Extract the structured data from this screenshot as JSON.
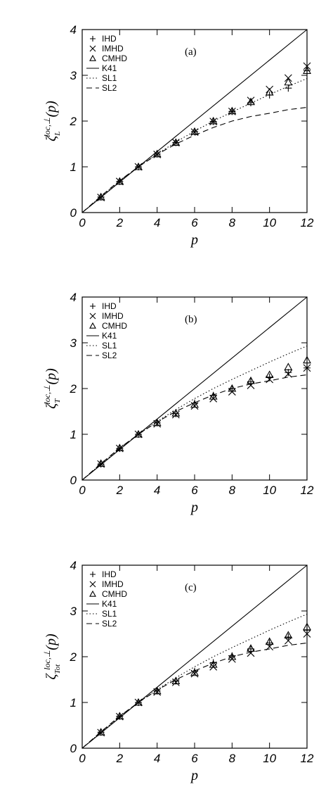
{
  "chart_data": [
    {
      "type": "line",
      "annotation": "(a)",
      "xlabel": "p",
      "ylabel": {
        "symbol": "ζ",
        "sup": "loc,⊥",
        "sub": "L",
        "arg": "(p)"
      },
      "xlim": [
        0,
        12
      ],
      "ylim": [
        0,
        4
      ],
      "xticks": [
        0,
        2,
        4,
        6,
        8,
        10,
        12
      ],
      "yticks": [
        0,
        1,
        2,
        3,
        4
      ],
      "legend": "upper left",
      "series": [
        {
          "name": "IHD",
          "marker": "plus",
          "color": "#000000",
          "x": [
            1,
            2,
            3,
            4,
            5,
            6,
            7,
            8,
            9,
            10,
            11,
            12
          ],
          "values": [
            0.34,
            0.68,
            1.0,
            1.28,
            1.53,
            1.77,
            1.99,
            2.21,
            2.4,
            2.57,
            2.72,
            3.1
          ]
        },
        {
          "name": "IMHD",
          "marker": "cross",
          "color": "#000000",
          "x": [
            1,
            2,
            3,
            4,
            5,
            6,
            7,
            8,
            9,
            10,
            11,
            12
          ],
          "values": [
            0.33,
            0.68,
            1.0,
            1.27,
            1.53,
            1.76,
            1.99,
            2.21,
            2.45,
            2.69,
            2.94,
            3.2
          ]
        },
        {
          "name": "CMHD",
          "marker": "triangle",
          "color": "#000000",
          "x": [
            1,
            2,
            3,
            4,
            5,
            6,
            7,
            8,
            9,
            10,
            11,
            12
          ],
          "values": [
            0.34,
            0.68,
            1.0,
            1.28,
            1.53,
            1.77,
            2.0,
            2.22,
            2.42,
            2.63,
            2.85,
            3.1
          ]
        },
        {
          "name": "K41",
          "dash": "solid",
          "color": "#000000",
          "x": [
            0,
            12
          ],
          "values": [
            0,
            4
          ]
        },
        {
          "name": "SL1",
          "dash": "dotted",
          "color": "#000000",
          "x": [
            0,
            1,
            2,
            3,
            4,
            5,
            6,
            7,
            8,
            9,
            10,
            11,
            12
          ],
          "values": [
            0,
            0.35,
            0.69,
            1.0,
            1.28,
            1.54,
            1.78,
            2.0,
            2.2,
            2.39,
            2.58,
            2.76,
            2.93
          ]
        },
        {
          "name": "SL2",
          "dash": "dashed",
          "color": "#000000",
          "x": [
            0,
            1,
            2,
            3,
            4,
            5,
            6,
            7,
            8,
            9,
            10,
            11,
            12
          ],
          "values": [
            0,
            0.36,
            0.7,
            1.0,
            1.27,
            1.5,
            1.69,
            1.86,
            2.0,
            2.1,
            2.17,
            2.25,
            2.3
          ]
        }
      ]
    },
    {
      "type": "line",
      "annotation": "(b)",
      "xlabel": "p",
      "ylabel": {
        "symbol": "ζ",
        "sup": "loc,⊥",
        "sub": "T",
        "arg": "(p)"
      },
      "xlim": [
        0,
        12
      ],
      "ylim": [
        0,
        4
      ],
      "xticks": [
        0,
        2,
        4,
        6,
        8,
        10,
        12
      ],
      "yticks": [
        0,
        1,
        2,
        3,
        4
      ],
      "legend": "upper left",
      "series": [
        {
          "name": "IHD",
          "marker": "plus",
          "color": "#000000",
          "x": [
            1,
            2,
            3,
            4,
            5,
            6,
            7,
            8,
            9,
            10,
            11,
            12
          ],
          "values": [
            0.35,
            0.69,
            1.0,
            1.25,
            1.45,
            1.68,
            1.85,
            2.0,
            2.15,
            2.25,
            2.35,
            2.45
          ]
        },
        {
          "name": "IMHD",
          "marker": "cross",
          "color": "#000000",
          "x": [
            1,
            2,
            3,
            4,
            5,
            6,
            7,
            8,
            9,
            10,
            11,
            12
          ],
          "values": [
            0.35,
            0.69,
            1.0,
            1.23,
            1.43,
            1.62,
            1.78,
            1.93,
            2.07,
            2.2,
            2.32,
            2.45
          ]
        },
        {
          "name": "CMHD",
          "marker": "triangle",
          "color": "#000000",
          "x": [
            1,
            2,
            3,
            4,
            5,
            6,
            7,
            8,
            9,
            10,
            11,
            12
          ],
          "values": [
            0.36,
            0.7,
            1.0,
            1.25,
            1.46,
            1.65,
            1.83,
            2.0,
            2.17,
            2.3,
            2.47,
            2.62
          ]
        },
        {
          "name": "K41",
          "dash": "solid",
          "color": "#000000",
          "x": [
            0,
            12
          ],
          "values": [
            0,
            4
          ]
        },
        {
          "name": "SL1",
          "dash": "dotted",
          "color": "#000000",
          "x": [
            0,
            1,
            2,
            3,
            4,
            5,
            6,
            7,
            8,
            9,
            10,
            11,
            12
          ],
          "values": [
            0,
            0.35,
            0.69,
            1.0,
            1.28,
            1.54,
            1.78,
            2.0,
            2.2,
            2.39,
            2.58,
            2.76,
            2.93
          ]
        },
        {
          "name": "SL2",
          "dash": "dashed",
          "color": "#000000",
          "x": [
            0,
            1,
            2,
            3,
            4,
            5,
            6,
            7,
            8,
            9,
            10,
            11,
            12
          ],
          "values": [
            0,
            0.36,
            0.7,
            1.0,
            1.27,
            1.5,
            1.69,
            1.86,
            2.0,
            2.1,
            2.17,
            2.25,
            2.3
          ]
        }
      ]
    },
    {
      "type": "line",
      "annotation": "(c)",
      "xlabel": "p",
      "ylabel": {
        "symbol": "ζ",
        "sup": "loc,⊥",
        "sub": "Tot",
        "arg": "(p)"
      },
      "xlim": [
        0,
        12
      ],
      "ylim": [
        0,
        4
      ],
      "xticks": [
        0,
        2,
        4,
        6,
        8,
        10,
        12
      ],
      "yticks": [
        0,
        1,
        2,
        3,
        4
      ],
      "legend": "upper left",
      "series": [
        {
          "name": "IHD",
          "marker": "plus",
          "color": "#000000",
          "x": [
            1,
            2,
            3,
            4,
            5,
            6,
            7,
            8,
            9,
            10,
            11,
            12
          ],
          "values": [
            0.35,
            0.7,
            1.0,
            1.25,
            1.47,
            1.68,
            1.87,
            2.02,
            2.17,
            2.3,
            2.43,
            2.58
          ]
        },
        {
          "name": "IMHD",
          "marker": "cross",
          "color": "#000000",
          "x": [
            1,
            2,
            3,
            4,
            5,
            6,
            7,
            8,
            9,
            10,
            11,
            12
          ],
          "values": [
            0.34,
            0.69,
            1.0,
            1.23,
            1.44,
            1.63,
            1.78,
            1.95,
            2.08,
            2.22,
            2.35,
            2.5
          ]
        },
        {
          "name": "CMHD",
          "marker": "triangle",
          "color": "#000000",
          "x": [
            1,
            2,
            3,
            4,
            5,
            6,
            7,
            8,
            9,
            10,
            11,
            12
          ],
          "values": [
            0.35,
            0.7,
            1.0,
            1.25,
            1.47,
            1.65,
            1.83,
            2.0,
            2.18,
            2.33,
            2.47,
            2.65
          ]
        },
        {
          "name": "K41",
          "dash": "solid",
          "color": "#000000",
          "x": [
            0,
            12
          ],
          "values": [
            0,
            4
          ]
        },
        {
          "name": "SL1",
          "dash": "dotted",
          "color": "#000000",
          "x": [
            0,
            1,
            2,
            3,
            4,
            5,
            6,
            7,
            8,
            9,
            10,
            11,
            12
          ],
          "values": [
            0,
            0.35,
            0.69,
            1.0,
            1.28,
            1.54,
            1.78,
            2.0,
            2.2,
            2.39,
            2.58,
            2.76,
            2.93
          ]
        },
        {
          "name": "SL2",
          "dash": "dashed",
          "color": "#000000",
          "x": [
            0,
            1,
            2,
            3,
            4,
            5,
            6,
            7,
            8,
            9,
            10,
            11,
            12
          ],
          "values": [
            0,
            0.36,
            0.7,
            1.0,
            1.27,
            1.5,
            1.69,
            1.86,
            2.0,
            2.1,
            2.17,
            2.25,
            2.3
          ]
        }
      ]
    }
  ]
}
